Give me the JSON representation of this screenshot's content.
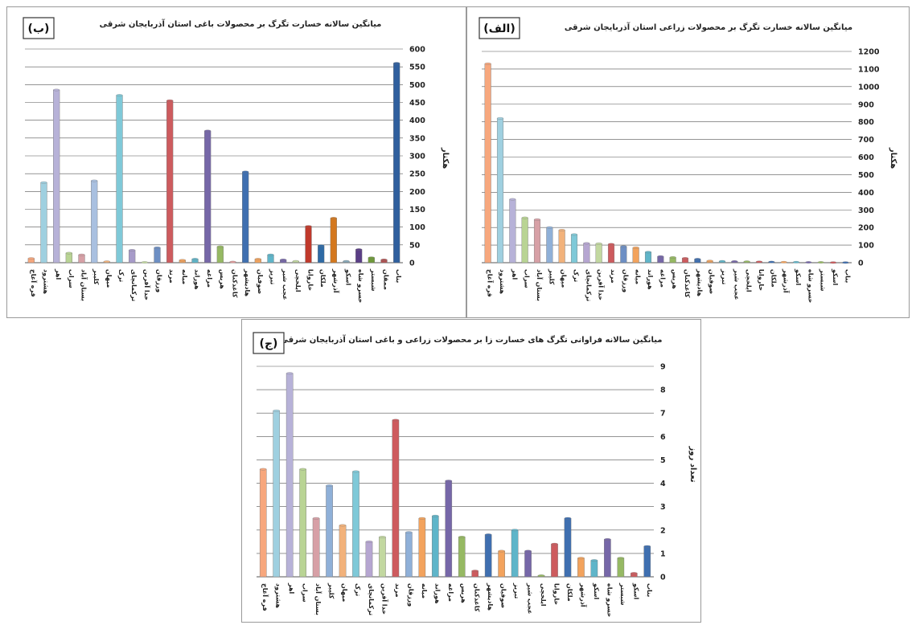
{
  "colors": [
    "#f7a77d",
    "#9fd0e0",
    "#b7b2d8",
    "#b9d494",
    "#d7a0a6",
    "#8fb0d8",
    "#f2b27b",
    "#7fc9d8",
    "#b6a6d1",
    "#c2d8a0",
    "#d9a3a8",
    "#99b5dc",
    "#f6b98c",
    "#8fc6d6",
    "#a79bc9",
    "#b9d49b",
    "#cd5b5e",
    "#6d8fc4",
    "#f3a35d",
    "#5fb5c9",
    "#7667a8",
    "#96b963"
  ],
  "panel_b": {
    "letter": "(ب)",
    "ylabel": "هکتار",
    "chart_data": {
      "type": "bar",
      "title": "میانگین سالانه خسارت تگرگ بر محصولات باغی استان آذربایجان شرقی",
      "ylabel": "هکتار",
      "ylim": [
        0,
        600
      ],
      "yticks": [
        0,
        50,
        100,
        150,
        200,
        250,
        300,
        350,
        400,
        450,
        500,
        550,
        600
      ],
      "categories": [
        "قره آغاج",
        "هشترود",
        "اهر",
        "سراب",
        "بستان آباد",
        "کلیبر",
        "میهان",
        "ترک",
        "ترکمانچای",
        "خدا آفرین",
        "ورزقان",
        "مرند",
        "میانه",
        "هوراند",
        "مراغه",
        "هریس",
        "کاغذکنان",
        "هادیشهر",
        "صوفیان",
        "تبریز",
        "عجب شیر",
        "ایلخچی",
        "خاروانا",
        "ملکان",
        "آذرشهر",
        "اسکو",
        "خسرو شاه",
        "شبستر",
        "ممقان",
        "بناب"
      ],
      "values": [
        12,
        225,
        485,
        27,
        22,
        230,
        3,
        470,
        35,
        1,
        42,
        455,
        7,
        10,
        370,
        45,
        2,
        255,
        10,
        22,
        8,
        4,
        102,
        48,
        125,
        4,
        37,
        14,
        8,
        560
      ],
      "colors": [
        "#f7a77d",
        "#9fd0e0",
        "#b7b2d8",
        "#b9d494",
        "#d7a0a6",
        "#a9c0e0",
        "#f2b27b",
        "#7fc9d8",
        "#a79bc9",
        "#c2d8a0",
        "#6d8fc4",
        "#cd5b5e",
        "#f3a35d",
        "#5fb5c9",
        "#7667a8",
        "#96b963",
        "#d99",
        "#3f6fb0",
        "#f3a35d",
        "#5fb5c9",
        "#7667a8",
        "#c2d8a0",
        "#c0392b",
        "#2e6aa5",
        "#d4781e",
        "#8ab",
        "#5a3e86",
        "#6f9a3a",
        "#b05050",
        "#2f5f9e"
      ]
    }
  },
  "panel_a": {
    "letter": "(الف)",
    "ylabel": "هکتار",
    "chart_data": {
      "type": "bar",
      "title": "میانگین سالانه خسارت تگرگ بر محصولات زراعی استان آذربایجان شرقی",
      "ylabel": "هکتار",
      "ylim": [
        0,
        1200
      ],
      "yticks": [
        0,
        100,
        200,
        300,
        400,
        500,
        600,
        700,
        800,
        900,
        1000,
        1100,
        1200
      ],
      "categories": [
        "قره آغاج",
        "هشترود",
        "اهر",
        "سراب",
        "بستان آباد",
        "کلیبر",
        "میهان",
        "ترک",
        "ترکمانچای",
        "خدا آفرین",
        "مرند",
        "ورزقان",
        "میانه",
        "هوراند",
        "مراغه",
        "هریس",
        "کاغذکنان",
        "هادیشهر",
        "صوفیان",
        "تبریز",
        "عجب شیر",
        "ایلخچی",
        "خاروانا",
        "ملکان",
        "آذرشهر",
        "اسکو",
        "خسرو شاه",
        "شبستر",
        "اسکو",
        "بناب"
      ],
      "values": [
        1130,
        820,
        360,
        255,
        245,
        200,
        185,
        160,
        110,
        108,
        105,
        92,
        85,
        60,
        35,
        30,
        25,
        20,
        10,
        8,
        7,
        6,
        5,
        4,
        3,
        3,
        2,
        2,
        1,
        1
      ],
      "colors": [
        "#f7a77d",
        "#9fd0e0",
        "#b7b2d8",
        "#b9d494",
        "#d7a0a6",
        "#8fb0d8",
        "#f2b27b",
        "#7fc9d8",
        "#b6a6d1",
        "#c2d8a0",
        "#cd5b5e",
        "#6d8fc4",
        "#f3a35d",
        "#5fb5c9",
        "#7667a8",
        "#96b963",
        "#cd5b5e",
        "#3f6fb0",
        "#f3a35d",
        "#5fb5c9",
        "#7667a8",
        "#96b963",
        "#cd5b5e",
        "#3f6fb0",
        "#f3a35d",
        "#5fb5c9",
        "#7667a8",
        "#96b963",
        "#cd5b5e",
        "#3f6fb0"
      ]
    }
  },
  "panel_c": {
    "letter": "(ج)",
    "ylabel": "تعداد روز",
    "chart_data": {
      "type": "bar",
      "title": "میانگین سالانه فراوانی تگرگ های خسارت زا بر محصولات زراعی و باغی  استان آذربایجان شرقی",
      "ylabel": "تعداد روز",
      "ylim": [
        0,
        9
      ],
      "yticks": [
        0,
        1,
        2,
        3,
        4,
        5,
        6,
        7,
        8,
        9
      ],
      "categories": [
        "قره آغاج",
        "هشترود",
        "اهر",
        "سراب",
        "بستان آباد",
        "کلیبر",
        "میهان",
        "ترک",
        "ترکمانچای",
        "خدا آفرین",
        "مرند",
        "ورزقان",
        "میانه",
        "هوراند",
        "مراغه",
        "هریس",
        "کاغذکنان",
        "هادیشهر",
        "صوفیان",
        "تبریز",
        "عجب شیر",
        "ایلخچی",
        "خاروانا",
        "ملکان",
        "آذرشهر",
        "اسکو",
        "خسرو شاه",
        "شبستر",
        "اسکو",
        "بناب"
      ],
      "values": [
        4.6,
        7.1,
        8.7,
        4.6,
        2.5,
        3.9,
        2.2,
        4.5,
        1.5,
        1.7,
        6.7,
        1.9,
        2.5,
        2.6,
        4.1,
        1.7,
        0.25,
        1.8,
        1.1,
        2.0,
        1.1,
        0.05,
        1.4,
        2.5,
        0.8,
        0.7,
        1.6,
        0.8,
        0.15,
        1.3
      ],
      "colors": [
        "#f7a77d",
        "#9fd0e0",
        "#b7b2d8",
        "#b9d494",
        "#d7a0a6",
        "#8fb0d8",
        "#f2b27b",
        "#7fc9d8",
        "#b6a6d1",
        "#c2d8a0",
        "#cd5b5e",
        "#8fb0d8",
        "#f3a35d",
        "#5fb5c9",
        "#7667a8",
        "#96b963",
        "#cd5b5e",
        "#3f6fb0",
        "#f3a35d",
        "#5fb5c9",
        "#7667a8",
        "#96b963",
        "#cd5b5e",
        "#3f6fb0",
        "#f3a35d",
        "#5fb5c9",
        "#7667a8",
        "#96b963",
        "#cd5b5e",
        "#3f6fb0"
      ]
    }
  }
}
